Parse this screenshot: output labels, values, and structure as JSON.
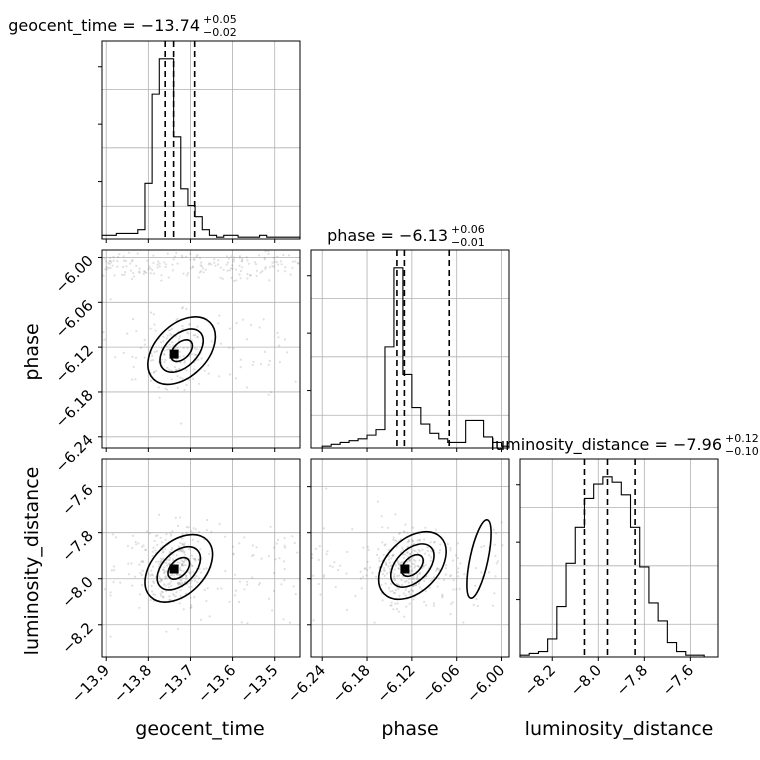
{
  "chart_data": {
    "type": "corner",
    "parameters": [
      {
        "name": "geocent_time",
        "title_main": "geocent_time = −13.74",
        "title_plus": "+0.05",
        "title_minus": "−0.02",
        "median": -13.74,
        "quantiles": [
          -13.76,
          -13.74,
          -13.69
        ],
        "range": [
          -13.91,
          -13.44
        ],
        "ticks": [
          -13.9,
          -13.8,
          -13.7,
          -13.6,
          -13.5
        ],
        "tick_labels": [
          "−13.9",
          "−13.8",
          "−13.7",
          "−13.6",
          "−13.5"
        ],
        "histogram": {
          "edges": [
            -13.91,
            -13.893,
            -13.876,
            -13.859,
            -13.842,
            -13.825,
            -13.808,
            -13.791,
            -13.774,
            -13.757,
            -13.74,
            -13.723,
            -13.706,
            -13.689,
            -13.672,
            -13.655,
            -13.638,
            -13.621,
            -13.604,
            -13.587,
            -13.57,
            -13.553,
            -13.536,
            -13.519,
            -13.502,
            -13.485,
            -13.468,
            -13.451,
            -13.44
          ],
          "counts": [
            0.02,
            0.02,
            0.03,
            0.03,
            0.03,
            0.05,
            0.3,
            0.78,
            0.97,
            0.97,
            0.55,
            0.27,
            0.18,
            0.12,
            0.05,
            0.02,
            0.01,
            0.02,
            0.02,
            0.01,
            0.01,
            0.01,
            0.02,
            0.01,
            0.01,
            0.01,
            0.01,
            0.01
          ]
        }
      },
      {
        "name": "phase",
        "title_main": "phase = −6.13",
        "title_plus": "+0.06",
        "title_minus": "−0.01",
        "median": -6.13,
        "quantiles": [
          -6.14,
          -6.13,
          -6.07
        ],
        "range": [
          -6.255,
          -5.99
        ],
        "ticks": [
          -6.24,
          -6.18,
          -6.12,
          -6.06,
          -6.0
        ],
        "tick_labels": [
          "−6.24",
          "−6.18",
          "−6.12",
          "−6.06",
          "−6.00"
        ],
        "histogram": {
          "edges": [
            -6.24,
            -6.228,
            -6.216,
            -6.204,
            -6.192,
            -6.18,
            -6.168,
            -6.156,
            -6.144,
            -6.132,
            -6.12,
            -6.108,
            -6.096,
            -6.084,
            -6.072,
            -6.06,
            -6.048,
            -6.036,
            -6.024,
            -6.012,
            -6.0,
            -5.99
          ],
          "counts": [
            0.01,
            0.02,
            0.03,
            0.04,
            0.05,
            0.07,
            0.1,
            0.55,
            0.98,
            0.4,
            0.22,
            0.13,
            0.08,
            0.05,
            0.03,
            0.03,
            0.15,
            0.15,
            0.06,
            0.03,
            0.01
          ]
        }
      },
      {
        "name": "luminosity_distance",
        "title_main": "luminosity_distance = −7.96",
        "title_plus": "+0.12",
        "title_minus": "−0.10",
        "median": -7.96,
        "quantiles": [
          -8.06,
          -7.96,
          -7.84
        ],
        "range": [
          -8.34,
          -7.48
        ],
        "ticks": [
          -8.2,
          -8.0,
          -7.8,
          -7.6
        ],
        "tick_labels": [
          "−8.2",
          "−8.0",
          "−7.8",
          "−7.6"
        ],
        "histogram": {
          "edges": [
            -8.34,
            -8.3,
            -8.26,
            -8.22,
            -8.18,
            -8.14,
            -8.1,
            -8.06,
            -8.02,
            -7.98,
            -7.94,
            -7.9,
            -7.86,
            -7.82,
            -7.78,
            -7.74,
            -7.7,
            -7.66,
            -7.62,
            -7.58,
            -7.54
          ],
          "counts": [
            0.01,
            0.02,
            0.03,
            0.1,
            0.28,
            0.52,
            0.72,
            0.88,
            0.96,
            1.0,
            0.97,
            0.9,
            0.72,
            0.5,
            0.3,
            0.2,
            0.08,
            0.03,
            0.01,
            0.01
          ]
        }
      }
    ],
    "y_axis_ticks": {
      "phase": [
        "−6.00",
        "−6.06",
        "−6.12",
        "−6.18",
        "−6.24"
      ],
      "luminosity_distance": [
        "−7.6",
        "−7.8",
        "−8.0",
        "−8.2"
      ]
    },
    "x_axis_labels": [
      "geocent_time",
      "phase",
      "luminosity_distance"
    ],
    "y_axis_labels": [
      "phase",
      "luminosity_distance"
    ],
    "grid": true,
    "scatter_color": "#808080",
    "contour_color": "#000000"
  }
}
